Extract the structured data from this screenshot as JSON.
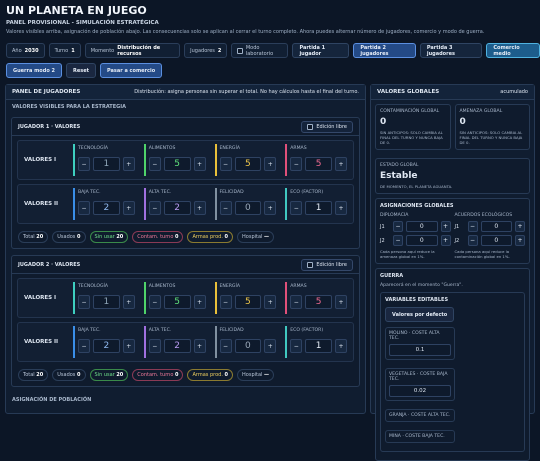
{
  "header": {
    "title": "UN PLANETA EN JUEGO",
    "subtitle": "PANEL PROVISIONAL - SIMULACIÓN ESTRATÉGICA",
    "description": "Valores visibles arriba, asignación de población abajo. Las consecuencias solo se aplican al cerrar el turno completo. Ahora puedes alternar número de jugadores, comercio y modo de guerra."
  },
  "toolbar": {
    "stats": [
      {
        "label": "Año",
        "value": 2030
      },
      {
        "label": "Turno",
        "value": 1
      },
      {
        "label": "Momento",
        "value": "Distribución de recursos"
      },
      {
        "label": "Jugadores",
        "value": 2
      }
    ],
    "lab_mode": "Modo laboratorio",
    "buttons": [
      "Partida 1 jugador",
      "Partida 2 jugadores",
      "Partida 3 jugadores",
      "Comercio medio",
      "Guerra modo 2",
      "Reset",
      "Pasar a comercio"
    ]
  },
  "controls": {
    "minus": "−",
    "plus": "+"
  },
  "players_panel": {
    "title": "PANEL DE JUGADORES",
    "note": "Distribución: asigna personas sin superar el total. No hay cálculos hasta el final del turno.",
    "section": "VALORES VISIBLES PARA LA ESTRATEGIA",
    "next_section": "ASIGNACIÓN DE POBLACIÓN",
    "players": [
      {
        "title": "JUGADOR 1 · VALORES",
        "free_edit": "Edición libre",
        "rows": [
          {
            "label": "VALORES I",
            "cells": [
              {
                "name": "TECNOLOGÍA",
                "value": 1
              },
              {
                "name": "ALIMENTOS",
                "value": 5
              },
              {
                "name": "ENERGÍA",
                "value": 5
              },
              {
                "name": "ARMAS",
                "value": 5
              }
            ]
          },
          {
            "label": "VALORES II",
            "cells": [
              {
                "name": "BAJA TEC.",
                "value": 2
              },
              {
                "name": "ALTA TEC.",
                "value": 2
              },
              {
                "name": "FELICIDAD",
                "value": 0
              },
              {
                "name": "ECO (FACTOR)",
                "value": 1
              }
            ]
          }
        ],
        "footer": [
          {
            "label": "Total",
            "value": 20
          },
          {
            "label": "Usados",
            "value": 0
          },
          {
            "label": "Sin usar",
            "value": 20
          },
          {
            "label": "Contam. turno",
            "value": 0
          },
          {
            "label": "Armas prod.",
            "value": 0
          },
          {
            "label": "Hospital",
            "value": "—"
          }
        ]
      },
      {
        "title": "JUGADOR 2 · VALORES",
        "free_edit": "Edición libre",
        "rows": [
          {
            "label": "VALORES I",
            "cells": [
              {
                "name": "TECNOLOGÍA",
                "value": 1
              },
              {
                "name": "ALIMENTOS",
                "value": 5
              },
              {
                "name": "ENERGÍA",
                "value": 5
              },
              {
                "name": "ARMAS",
                "value": 5
              }
            ]
          },
          {
            "label": "VALORES II",
            "cells": [
              {
                "name": "BAJA TEC.",
                "value": 2
              },
              {
                "name": "ALTA TEC.",
                "value": 2
              },
              {
                "name": "FELICIDAD",
                "value": 0
              },
              {
                "name": "ECO (FACTOR)",
                "value": 1
              }
            ]
          }
        ],
        "footer": [
          {
            "label": "Total",
            "value": 20
          },
          {
            "label": "Usados",
            "value": 0
          },
          {
            "label": "Sin usar",
            "value": 20
          },
          {
            "label": "Contam. turno",
            "value": 0
          },
          {
            "label": "Armas prod.",
            "value": 0
          },
          {
            "label": "Hospital",
            "value": "—"
          }
        ]
      }
    ]
  },
  "globals": {
    "title": "VALORES GLOBALES",
    "note": "acumulado",
    "cards": [
      {
        "label": "CONTAMINACIÓN GLOBAL",
        "value": 0,
        "note": "SIN ANTICIPOS: SOLO CAMBIA AL FINAL DEL TURNO Y NUNCA BAJA DE 0."
      },
      {
        "label": "AMENAZA GLOBAL",
        "value": 0,
        "note": "SIN ANTICIPOS: SOLO CAMBIA AL FINAL DEL TURNO Y NUNCA BAJA DE 0."
      }
    ],
    "state": {
      "label": "ESTADO GLOBAL",
      "value": "Estable",
      "note": "DE MOMENTO, EL PLANETA AGUANTA."
    },
    "assignments": {
      "title": "ASIGNACIONES GLOBALES",
      "groups": [
        {
          "title": "DIPLOMACIA",
          "rows": [
            {
              "label": "J1",
              "value": 0
            },
            {
              "label": "J2",
              "value": 0
            }
          ],
          "note": "Cada persona aquí reduce la amenaza global en 1%."
        },
        {
          "title": "ACUERDOS ECOLÓGICOS",
          "rows": [
            {
              "label": "J1",
              "value": 0
            },
            {
              "label": "J2",
              "value": 0
            }
          ],
          "note": "Cada persona aquí reduce la contaminación global en 1%."
        }
      ]
    },
    "war": {
      "title": "GUERRA",
      "note": "Aparecerá en el momento \"Guerra\".",
      "editable": {
        "title": "VARIABLES EDITABLES",
        "reset": "Valores por defecto",
        "vars": [
          {
            "label": "MOLINO · COSTE ALTA TEC.",
            "value": 0.1
          },
          {
            "label": "VEGETALES · COSTE BAJA TEC.",
            "value": 0.02
          },
          {
            "label": "GRANJA · COSTE ALTA TEC."
          },
          {
            "label": "MINA · COSTE BAJA TEC."
          }
        ]
      }
    }
  }
}
